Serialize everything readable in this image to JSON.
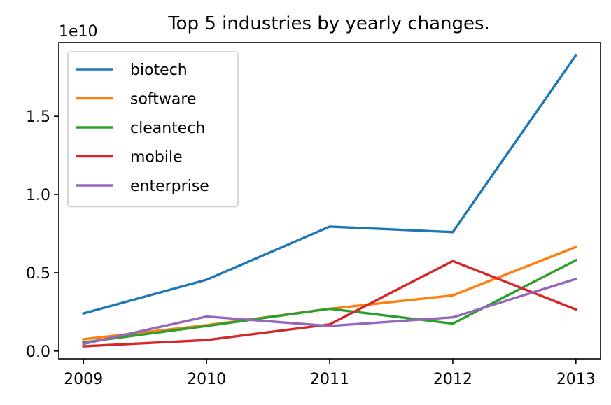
{
  "chart_data": {
    "type": "line",
    "title": "Top 5 industries by yearly changes.",
    "offset_label": "1e10",
    "x": [
      "2009",
      "2010",
      "2011",
      "2012",
      "2013"
    ],
    "xlim": [
      2008.8,
      2013.2
    ],
    "ylim": [
      -0.05,
      1.97
    ],
    "yticks": [
      0.0,
      0.5,
      1.0,
      1.5
    ],
    "ytick_labels": [
      "0.0",
      "0.5",
      "1.0",
      "1.5"
    ],
    "y_scale_note": "values in units of 1e10",
    "grid": false,
    "legend_position": "top-left",
    "series": [
      {
        "name": "biotech",
        "color": "#1f77b4",
        "values": [
          0.24,
          0.455,
          0.795,
          0.76,
          1.89
        ]
      },
      {
        "name": "software",
        "color": "#ff7f0e",
        "values": [
          0.075,
          0.165,
          0.27,
          0.355,
          0.665
        ]
      },
      {
        "name": "cleantech",
        "color": "#2ca02c",
        "values": [
          0.055,
          0.16,
          0.27,
          0.175,
          0.58
        ]
      },
      {
        "name": "mobile",
        "color": "#d62728",
        "values": [
          0.03,
          0.07,
          0.17,
          0.575,
          0.265
        ]
      },
      {
        "name": "enterprise",
        "color": "#9467bd",
        "values": [
          0.045,
          0.22,
          0.16,
          0.215,
          0.46
        ]
      }
    ]
  }
}
